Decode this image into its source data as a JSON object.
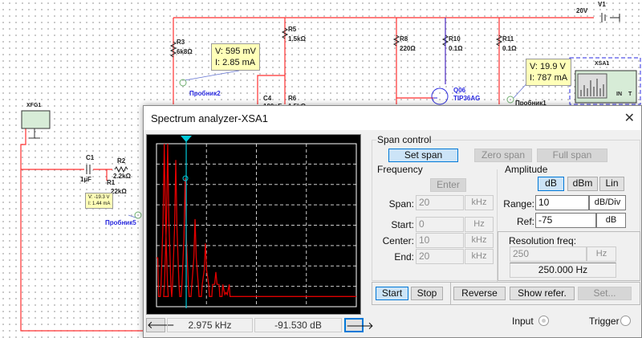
{
  "schematic": {
    "components": [
      {
        "ref": "R3",
        "value": "6k8Ω"
      },
      {
        "ref": "R5",
        "value": "1.5kΩ"
      },
      {
        "ref": "C4",
        "value": "100nF"
      },
      {
        "ref": "R6",
        "value": "1.5kΩ"
      },
      {
        "ref": "R8",
        "value": "220Ω"
      },
      {
        "ref": "R10",
        "value": "0.1Ω"
      },
      {
        "ref": "R11",
        "value": "0.1Ω"
      },
      {
        "ref": "Q06",
        "value": "TIP36AG"
      },
      {
        "ref": "V1",
        "value": "20V"
      },
      {
        "ref": "C1",
        "value": "1µF"
      },
      {
        "ref": "R2",
        "value": "2.2kΩ"
      },
      {
        "ref": "R1",
        "value": "22kΩ"
      }
    ],
    "instruments": {
      "xsa": "XSA1",
      "xfg": "XFG1",
      "xsa_in": "IN",
      "xsa_t": "T"
    },
    "probes": [
      {
        "name": "Пробник2",
        "v": "V: 595 mV",
        "i": "I: 2.85 mA"
      },
      {
        "name": "Пробник1",
        "v": "V: 19.9 V",
        "i": "I: 787 mA"
      },
      {
        "name": "Пробник5",
        "v": "V: -19.3 V",
        "i": "I: 1.44 mA"
      }
    ],
    "wire_color": "#ff3030"
  },
  "window": {
    "title": "Spectrum analyzer-XSA1",
    "close": "✕"
  },
  "display": {
    "cursor_freq": "2.975 kHz",
    "cursor_level": "-91.530  dB",
    "left_arrow": "🡐",
    "right_arrow": "🡒",
    "trace_color": "#e00000",
    "cursor_color": "#00c8d8",
    "chart_data": {
      "type": "line",
      "xlim_khz": [
        0,
        20
      ],
      "ylim_db": [
        -155,
        -75
      ],
      "grid": true,
      "baseline_db": -150,
      "peaks": [
        {
          "khz": 0.05,
          "db": -131
        },
        {
          "khz": 0.78,
          "db": -75
        },
        {
          "khz": 1.12,
          "db": -75
        },
        {
          "khz": 1.93,
          "db": -83
        },
        {
          "khz": 2.87,
          "db": -92
        },
        {
          "khz": 3.86,
          "db": -112
        },
        {
          "khz": 4.9,
          "db": -124
        },
        {
          "khz": 5.94,
          "db": -138
        },
        {
          "khz": 6.96,
          "db": -148
        }
      ],
      "cursor_khz": 2.975
    }
  },
  "span_control": {
    "title": "Span control",
    "set_span": "Set span",
    "zero_span": "Zero span",
    "full_span": "Full span"
  },
  "frequency": {
    "title": "Frequency",
    "enter": "Enter",
    "rows": [
      {
        "label": "Span:",
        "value": "20",
        "unit": "kHz"
      },
      {
        "label": "Start:",
        "value": "0",
        "unit": "Hz"
      },
      {
        "label": "Center:",
        "value": "10",
        "unit": "kHz"
      },
      {
        "label": "End:",
        "value": "20",
        "unit": "kHz"
      }
    ]
  },
  "amplitude": {
    "title": "Amplitude",
    "db": "dB",
    "dbm": "dBm",
    "lin": "Lin",
    "range_label": "Range:",
    "range_value": "10",
    "range_unit": "dB/Div",
    "ref_label": "Ref:",
    "ref_value": "-75",
    "ref_unit": "dB"
  },
  "resolution": {
    "title": "Resolution freq:",
    "value": "250",
    "unit": "Hz",
    "display": "250.000  Hz"
  },
  "controls": {
    "start": "Start",
    "stop": "Stop",
    "reverse": "Reverse",
    "show_refer": "Show refer.",
    "set": "Set..."
  },
  "trigger": {
    "input": "Input",
    "trigger": "Trigger"
  }
}
